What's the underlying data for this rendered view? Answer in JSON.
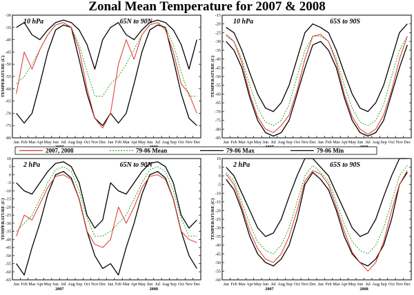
{
  "title": "Zonal Mean Temperature for 2007 & 2008",
  "legend": [
    {
      "label": "2007, 2008",
      "color": "#e0302b",
      "dash": ""
    },
    {
      "label": "79-06 Mean",
      "color": "#1ea51e",
      "dash": "2,2"
    },
    {
      "label": "79-06 Max",
      "color": "#000000",
      "dash": ""
    },
    {
      "label": "79-06 Min",
      "color": "#000000",
      "dash": ""
    }
  ],
  "colors": {
    "series_2007_2008": "#e0302b",
    "mean": "#1ea51e",
    "max_min": "#000000"
  },
  "chart_data": [
    {
      "type": "line",
      "level_label": "10 hPa",
      "region_label": "65N to 90N",
      "ylabel": "TEMPERATURE (C)",
      "ylim": [
        -80,
        -30
      ],
      "yticks": [
        -80,
        -75,
        -70,
        -65,
        -60,
        -55,
        -50,
        -45,
        -40,
        -35,
        -30
      ],
      "x_month_ticks": [
        "Jan",
        "Feb",
        "Mar",
        "Apr",
        "May",
        "Jun",
        "Jul",
        "Aug",
        "Sep",
        "Oct",
        "Nov",
        "Dec",
        "Jan",
        "Feb",
        "Mar",
        "Apr",
        "May",
        "Jun",
        "Jul",
        "Aug",
        "Sep",
        "Oct",
        "Nov",
        "Dec"
      ],
      "x_year_labels": [
        "2007",
        "2008"
      ],
      "months": [
        1,
        2,
        3,
        4,
        5,
        6,
        7,
        8,
        9,
        10,
        11,
        12,
        13,
        14,
        15,
        16,
        17,
        18,
        19,
        20,
        21,
        22,
        23,
        24
      ],
      "series": [
        {
          "name": "79-06 Max",
          "values": [
            -35,
            -33,
            -38,
            -40,
            -36,
            -33,
            -32,
            -33,
            -36,
            -42,
            -52,
            -40,
            -35,
            -33,
            -38,
            -40,
            -36,
            -33,
            -32,
            -33,
            -36,
            -42,
            -52,
            -40
          ]
        },
        {
          "name": "79-06 Min",
          "values": [
            -70,
            -74,
            -70,
            -58,
            -45,
            -36,
            -34,
            -35,
            -48,
            -62,
            -72,
            -75,
            -70,
            -74,
            -70,
            -58,
            -45,
            -36,
            -34,
            -35,
            -48,
            -62,
            -72,
            -75
          ]
        },
        {
          "name": "79-06 Mean",
          "values": [
            -58,
            -55,
            -50,
            -44,
            -38,
            -34,
            -33,
            -35,
            -42,
            -53,
            -63,
            -63,
            -58,
            -55,
            -50,
            -44,
            -38,
            -34,
            -33,
            -35,
            -42,
            -53,
            -63,
            -63
          ]
        },
        {
          "name": "2007, 2008",
          "values": [
            -62,
            -45,
            -52,
            -44,
            -38,
            -34,
            -33,
            -35,
            -44,
            -60,
            -72,
            -76,
            -70,
            -50,
            -40,
            -48,
            -38,
            -34,
            -33,
            -36,
            -45,
            -58,
            -62,
            -70
          ]
        }
      ]
    },
    {
      "type": "line",
      "level_label": "10 hPa",
      "region_label": "65S to 90S",
      "ylabel": "TEMPERATURE (C)",
      "ylim": [
        -85,
        -15
      ],
      "yticks": [
        -85,
        -80,
        -75,
        -70,
        -65,
        -60,
        -55,
        -50,
        -45,
        -40,
        -35,
        -30,
        -25,
        -20,
        -15
      ],
      "x_month_ticks": [
        "Jan",
        "Feb",
        "Mar",
        "Apr",
        "May",
        "Jun",
        "Jul",
        "Aug",
        "Sep",
        "Oct",
        "Nov",
        "Dec",
        "Jan",
        "Feb",
        "Mar",
        "Apr",
        "May",
        "Jun",
        "Jul",
        "Aug",
        "Sep",
        "Oct",
        "Nov",
        "Dec"
      ],
      "x_year_labels": [
        "2007",
        "2008"
      ],
      "months": [
        1,
        2,
        3,
        4,
        5,
        6,
        7,
        8,
        9,
        10,
        11,
        12,
        13,
        14,
        15,
        16,
        17,
        18,
        19,
        20,
        21,
        22,
        23,
        24
      ],
      "series": [
        {
          "name": "79-06 Max",
          "values": [
            -22,
            -25,
            -35,
            -48,
            -60,
            -68,
            -70,
            -65,
            -55,
            -40,
            -25,
            -20,
            -22,
            -25,
            -35,
            -48,
            -60,
            -68,
            -70,
            -65,
            -55,
            -40,
            -25,
            -20
          ]
        },
        {
          "name": "79-06 Min",
          "values": [
            -30,
            -35,
            -45,
            -62,
            -75,
            -82,
            -84,
            -82,
            -75,
            -60,
            -45,
            -32,
            -30,
            -35,
            -45,
            -62,
            -75,
            -82,
            -84,
            -82,
            -75,
            -60,
            -45,
            -32
          ]
        },
        {
          "name": "79-06 Mean",
          "values": [
            -27,
            -30,
            -40,
            -55,
            -68,
            -76,
            -78,
            -75,
            -66,
            -50,
            -35,
            -27,
            -27,
            -30,
            -40,
            -55,
            -68,
            -76,
            -78,
            -75,
            -66,
            -50,
            -35,
            -27
          ]
        },
        {
          "name": "2007, 2008",
          "values": [
            -26,
            -30,
            -42,
            -60,
            -73,
            -80,
            -82,
            -78,
            -72,
            -58,
            -40,
            -27,
            -26,
            -30,
            -42,
            -60,
            -73,
            -80,
            -83,
            -80,
            -72,
            -58,
            -40,
            -27
          ]
        }
      ]
    },
    {
      "type": "line",
      "level_label": "2 hPa",
      "region_label": "65N to 90N",
      "ylabel": "TEMPERATURE (C)",
      "ylim": [
        -65,
        10
      ],
      "yticks": [
        -65,
        -60,
        -55,
        -50,
        -45,
        -40,
        -35,
        -30,
        -25,
        -20,
        -15,
        -10,
        -5,
        0,
        5,
        10
      ],
      "x_month_ticks": [
        "Jan",
        "Feb",
        "Mar",
        "Apr",
        "May",
        "Jun",
        "Jul",
        "Aug",
        "Sep",
        "Oct",
        "Nov",
        "Dec",
        "Jan",
        "Feb",
        "Mar",
        "Apr",
        "May",
        "Jun",
        "Jul",
        "Aug",
        "Sep",
        "Oct",
        "Nov",
        "Dec"
      ],
      "x_year_labels": [
        "2007",
        "2008"
      ],
      "months": [
        1,
        2,
        3,
        4,
        5,
        6,
        7,
        8,
        9,
        10,
        11,
        12,
        13,
        14,
        15,
        16,
        17,
        18,
        19,
        20,
        21,
        22,
        23,
        24
      ],
      "series": [
        {
          "name": "79-06 Max",
          "values": [
            -5,
            -10,
            -12,
            -5,
            2,
            7,
            8,
            5,
            -5,
            -25,
            -33,
            -28,
            -5,
            -10,
            -12,
            -5,
            2,
            7,
            8,
            5,
            -5,
            -25,
            -33,
            -28
          ]
        },
        {
          "name": "79-06 Min",
          "values": [
            -55,
            -62,
            -45,
            -30,
            -12,
            0,
            2,
            -2,
            -15,
            -35,
            -50,
            -58,
            -55,
            -62,
            -45,
            -30,
            -12,
            0,
            2,
            -2,
            -15,
            -35,
            -50,
            -58
          ]
        },
        {
          "name": "79-06 Mean",
          "values": [
            -35,
            -30,
            -25,
            -15,
            -5,
            3,
            5,
            2,
            -10,
            -27,
            -38,
            -38,
            -35,
            -30,
            -25,
            -15,
            -5,
            3,
            5,
            2,
            -10,
            -27,
            -38,
            -38
          ]
        },
        {
          "name": "2007, 2008",
          "values": [
            -38,
            -25,
            -28,
            -18,
            -8,
            -1,
            0,
            -3,
            -15,
            -35,
            -43,
            -45,
            -40,
            -20,
            -30,
            -20,
            -8,
            -1,
            0,
            -3,
            -15,
            -35,
            -40,
            -42
          ]
        }
      ]
    },
    {
      "type": "line",
      "level_label": "2 hPa",
      "region_label": "65S to 90S",
      "ylabel": "TEMPERATURE (C)",
      "ylim": [
        -60,
        10
      ],
      "yticks": [
        -60,
        -55,
        -50,
        -45,
        -40,
        -35,
        -30,
        -25,
        -20,
        -15,
        -10,
        -5,
        0,
        5,
        10
      ],
      "x_month_ticks": [
        "Jan",
        "Feb",
        "Mar",
        "Apr",
        "May",
        "Jun",
        "Jul",
        "Aug",
        "Sep",
        "Oct",
        "Nov",
        "Dec",
        "Jan",
        "Feb",
        "Mar",
        "Apr",
        "May",
        "Jun",
        "Jul",
        "Aug",
        "Sep",
        "Oct",
        "Nov",
        "Dec"
      ],
      "x_year_labels": [
        "2007",
        "2008"
      ],
      "months": [
        1,
        2,
        3,
        4,
        5,
        6,
        7,
        8,
        9,
        10,
        11,
        12,
        13,
        14,
        15,
        16,
        17,
        18,
        19,
        20,
        21,
        22,
        23,
        24
      ],
      "series": [
        {
          "name": "79-06 Max",
          "values": [
            5,
            0,
            -10,
            -20,
            -30,
            -35,
            -33,
            -25,
            -12,
            0,
            10,
            10,
            5,
            0,
            -10,
            -20,
            -30,
            -35,
            -33,
            -25,
            -12,
            0,
            10,
            10
          ]
        },
        {
          "name": "79-06 Min",
          "values": [
            -2,
            -8,
            -20,
            -35,
            -45,
            -50,
            -52,
            -48,
            -40,
            -25,
            -5,
            2,
            -2,
            -8,
            -20,
            -35,
            -45,
            -50,
            -52,
            -48,
            -40,
            -25,
            -5,
            2
          ]
        },
        {
          "name": "79-06 Mean",
          "values": [
            2,
            -3,
            -15,
            -28,
            -38,
            -43,
            -45,
            -40,
            -30,
            -15,
            0,
            6,
            2,
            -3,
            -15,
            -28,
            -38,
            -43,
            -45,
            -40,
            -30,
            -15,
            0,
            6
          ]
        },
        {
          "name": "2007, 2008",
          "values": [
            1,
            -5,
            -18,
            -32,
            -42,
            -48,
            -50,
            -45,
            -35,
            -20,
            -3,
            3,
            1,
            -5,
            -18,
            -32,
            -44,
            -50,
            -55,
            -50,
            -38,
            -20,
            -5,
            3
          ]
        }
      ]
    }
  ]
}
